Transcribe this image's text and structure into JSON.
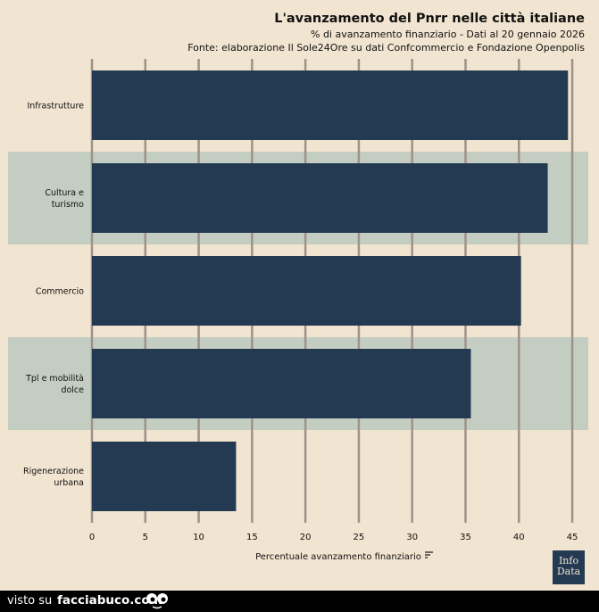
{
  "header": {
    "title": "L'avanzamento del Pnrr nelle città italiane",
    "subtitle": "% di avanzamento finanziario - Dati al 20 gennaio 2026",
    "source": "Fonte: elaborazione Il Sole24Ore su dati Confcommercio e Fondazione Openpolis"
  },
  "chart_data": {
    "type": "bar",
    "orientation": "horizontal",
    "categories": [
      [
        "Infrastrutture"
      ],
      [
        "Cultura e",
        "turismo"
      ],
      [
        "Commercio"
      ],
      [
        "Tpl e mobilità",
        "dolce"
      ],
      [
        "Rigenerazione",
        "urbana"
      ]
    ],
    "values": [
      44.6,
      42.7,
      40.2,
      35.5,
      13.5
    ],
    "xlabel": "Percentuale avanzamento finanziario",
    "xlim": [
      0,
      46.5
    ],
    "xticks": [
      0,
      5,
      10,
      15,
      20,
      25,
      30,
      35,
      40,
      45
    ],
    "bar_color": "#233a52",
    "band_color": "#c4cdc1",
    "grid_color": "#9e9289",
    "grid": true
  },
  "logo": {
    "line1": "Info",
    "line2": "Data"
  },
  "footer": {
    "visto": "visto su",
    "site": "facciabuco.com"
  }
}
